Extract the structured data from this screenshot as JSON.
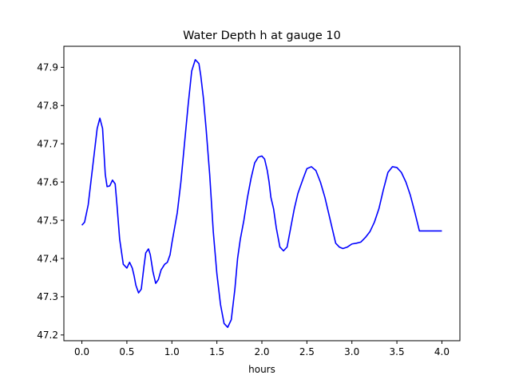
{
  "chart_data": {
    "type": "line",
    "title": "Water Depth h at gauge 10",
    "xlabel": "hours",
    "ylabel": "",
    "xlim": [
      -0.2,
      4.2
    ],
    "ylim": [
      47.185,
      47.955
    ],
    "grid": false,
    "xticks": [
      0.0,
      0.5,
      1.0,
      1.5,
      2.0,
      2.5,
      3.0,
      3.5,
      4.0
    ],
    "xtick_labels": [
      "0.0",
      "0.5",
      "1.0",
      "1.5",
      "2.0",
      "2.5",
      "3.0",
      "3.5",
      "4.0"
    ],
    "yticks": [
      47.2,
      47.3,
      47.4,
      47.5,
      47.6,
      47.7,
      47.8,
      47.9
    ],
    "ytick_labels": [
      "47.2",
      "47.3",
      "47.4",
      "47.5",
      "47.6",
      "47.7",
      "47.8",
      "47.9"
    ],
    "series": [
      {
        "color": "#0000ff",
        "x": [
          0.0,
          0.03,
          0.07,
          0.1,
          0.14,
          0.17,
          0.2,
          0.23,
          0.26,
          0.28,
          0.31,
          0.34,
          0.37,
          0.39,
          0.42,
          0.46,
          0.5,
          0.53,
          0.56,
          0.58,
          0.6,
          0.63,
          0.66,
          0.69,
          0.71,
          0.74,
          0.76,
          0.79,
          0.82,
          0.85,
          0.88,
          0.92,
          0.95,
          0.98,
          1.0,
          1.03,
          1.06,
          1.1,
          1.14,
          1.18,
          1.22,
          1.26,
          1.3,
          1.32,
          1.35,
          1.38,
          1.42,
          1.46,
          1.5,
          1.54,
          1.58,
          1.62,
          1.66,
          1.7,
          1.73,
          1.76,
          1.8,
          1.84,
          1.88,
          1.92,
          1.96,
          2.0,
          2.03,
          2.06,
          2.08,
          2.1,
          2.13,
          2.16,
          2.2,
          2.24,
          2.28,
          2.32,
          2.36,
          2.4,
          2.43,
          2.46,
          2.5,
          2.55,
          2.6,
          2.65,
          2.7,
          2.74,
          2.78,
          2.82,
          2.86,
          2.9,
          2.95,
          3.0,
          3.05,
          3.1,
          3.15,
          3.2,
          3.25,
          3.3,
          3.35,
          3.4,
          3.45,
          3.5,
          3.55,
          3.6,
          3.65,
          3.7,
          3.75,
          3.8,
          3.85,
          3.9,
          3.95,
          4.0
        ],
        "y": [
          47.487,
          47.495,
          47.54,
          47.6,
          47.68,
          47.74,
          47.767,
          47.74,
          47.62,
          47.588,
          47.59,
          47.605,
          47.595,
          47.54,
          47.45,
          47.385,
          47.375,
          47.39,
          47.375,
          47.355,
          47.33,
          47.31,
          47.32,
          47.38,
          47.415,
          47.425,
          47.41,
          47.365,
          47.335,
          47.345,
          47.37,
          47.385,
          47.39,
          47.41,
          47.44,
          47.48,
          47.52,
          47.6,
          47.7,
          47.8,
          47.89,
          47.92,
          47.91,
          47.88,
          47.82,
          47.74,
          47.62,
          47.47,
          47.36,
          47.28,
          47.23,
          47.22,
          47.24,
          47.32,
          47.4,
          47.45,
          47.5,
          47.56,
          47.61,
          47.65,
          47.665,
          47.668,
          47.66,
          47.63,
          47.6,
          47.56,
          47.53,
          47.48,
          47.43,
          47.42,
          47.43,
          47.48,
          47.53,
          47.57,
          47.59,
          47.61,
          47.635,
          47.64,
          47.63,
          47.6,
          47.56,
          47.52,
          47.48,
          47.44,
          47.43,
          47.426,
          47.43,
          47.438,
          47.44,
          47.443,
          47.455,
          47.47,
          47.495,
          47.53,
          47.58,
          47.625,
          47.64,
          47.638,
          47.625,
          47.6,
          47.565,
          47.52,
          47.472,
          47.472,
          47.472,
          47.472,
          47.472,
          47.472
        ]
      }
    ]
  }
}
